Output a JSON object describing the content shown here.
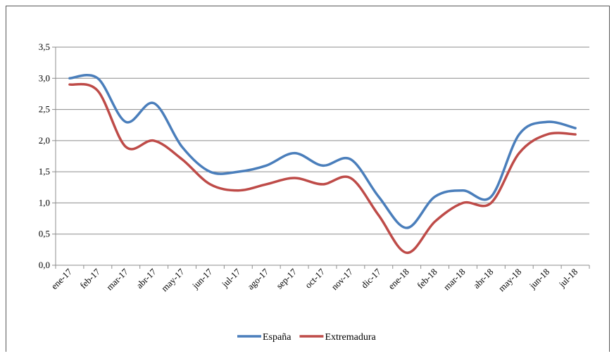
{
  "chart_data": {
    "type": "line",
    "categories": [
      "ene-17",
      "feb-17",
      "mar-17",
      "abr-17",
      "may-17",
      "jun-17",
      "jul-17",
      "ago-17",
      "sep-17",
      "oct-17",
      "nov-17",
      "dic-17",
      "ene-18",
      "feb-18",
      "mar-18",
      "abr-18",
      "may-18",
      "jun-18",
      "jul-18"
    ],
    "series": [
      {
        "name": "España",
        "color": "#4a7ebb",
        "values": [
          3.0,
          3.0,
          2.3,
          2.6,
          1.9,
          1.5,
          1.5,
          1.6,
          1.8,
          1.6,
          1.7,
          1.1,
          0.6,
          1.1,
          1.2,
          1.1,
          2.1,
          2.3,
          2.2
        ]
      },
      {
        "name": "Extremadura",
        "color": "#be4b48",
        "values": [
          2.9,
          2.8,
          1.9,
          2.0,
          1.7,
          1.3,
          1.2,
          1.3,
          1.4,
          1.3,
          1.4,
          0.8,
          0.2,
          0.7,
          1.0,
          1.0,
          1.8,
          2.1,
          2.1
        ]
      }
    ],
    "y_ticks": [
      "0,0",
      "0,5",
      "1,0",
      "1,5",
      "2,0",
      "2,5",
      "3,0",
      "3,5"
    ],
    "ylim": [
      0,
      3.5
    ],
    "grid": true,
    "legend_position": "bottom",
    "title": "",
    "xlabel": "",
    "ylabel": ""
  }
}
